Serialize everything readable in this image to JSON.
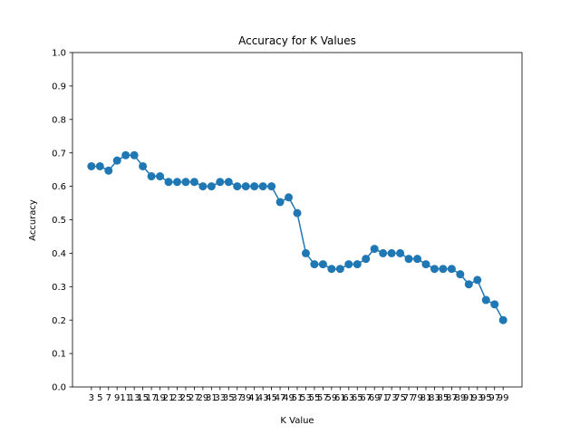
{
  "chart_data": {
    "type": "line",
    "title": "Accuracy for K Values",
    "xlabel": "K Value",
    "ylabel": "Accuracy",
    "ylim": [
      0.0,
      1.0
    ],
    "yticks": [
      "0.0",
      "0.1",
      "0.2",
      "0.3",
      "0.4",
      "0.5",
      "0.6",
      "0.7",
      "0.8",
      "0.9",
      "1.0"
    ],
    "grid": false,
    "legend": "none",
    "color": "#1f77b4",
    "markers": true,
    "x": [
      3,
      5,
      7,
      9,
      11,
      13,
      15,
      17,
      19,
      21,
      23,
      25,
      27,
      29,
      31,
      33,
      35,
      37,
      39,
      41,
      43,
      45,
      47,
      49,
      51,
      53,
      55,
      57,
      59,
      61,
      63,
      65,
      67,
      69,
      71,
      73,
      75,
      77,
      79,
      81,
      83,
      85,
      87,
      89,
      91,
      93,
      95,
      97,
      99
    ],
    "values": [
      0.66,
      0.66,
      0.647,
      0.677,
      0.693,
      0.693,
      0.66,
      0.63,
      0.63,
      0.613,
      0.613,
      0.613,
      0.613,
      0.6,
      0.6,
      0.613,
      0.613,
      0.6,
      0.6,
      0.6,
      0.6,
      0.6,
      0.553,
      0.567,
      0.52,
      0.4,
      0.367,
      0.367,
      0.353,
      0.353,
      0.367,
      0.367,
      0.383,
      0.413,
      0.4,
      0.4,
      0.4,
      0.383,
      0.383,
      0.367,
      0.353,
      0.353,
      0.353,
      0.337,
      0.307,
      0.32,
      0.26,
      0.247,
      0.2
    ]
  }
}
